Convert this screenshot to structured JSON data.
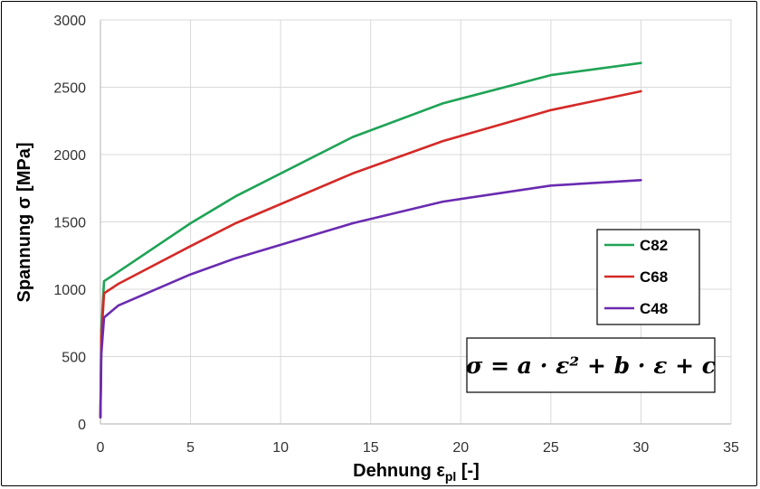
{
  "chart_data": {
    "type": "line",
    "title": "",
    "xlabel_main": "Dehnung ε",
    "xlabel_sub": "pl",
    "xlabel_unit": " [-]",
    "ylabel": "Spannung σ [MPa]",
    "xlim": [
      0,
      35
    ],
    "ylim": [
      0,
      3000
    ],
    "xticks": [
      0,
      5,
      10,
      15,
      20,
      25,
      30,
      35
    ],
    "yticks": [
      0,
      500,
      1000,
      1500,
      2000,
      2500,
      3000
    ],
    "grid": true,
    "legend_position": "right",
    "series": [
      {
        "name": "C82",
        "color": "#1fa356",
        "x": [
          0,
          0.05,
          0.2,
          1,
          5,
          7.5,
          14,
          19,
          25,
          30
        ],
        "y": [
          50,
          700,
          1060,
          1130,
          1490,
          1690,
          2130,
          2380,
          2590,
          2680
        ]
      },
      {
        "name": "C68",
        "color": "#d42a27",
        "x": [
          0,
          0.05,
          0.2,
          1,
          5,
          7.5,
          14,
          19,
          25,
          30
        ],
        "y": [
          50,
          640,
          970,
          1040,
          1320,
          1490,
          1860,
          2100,
          2330,
          2470
        ]
      },
      {
        "name": "C48",
        "color": "#6a2bb0",
        "x": [
          0,
          0.05,
          0.2,
          1,
          5,
          7.5,
          14,
          19,
          25,
          30
        ],
        "y": [
          50,
          520,
          790,
          880,
          1110,
          1230,
          1490,
          1650,
          1770,
          1810
        ]
      }
    ],
    "annotation": "σ = a · ε² + b · ε + c"
  }
}
